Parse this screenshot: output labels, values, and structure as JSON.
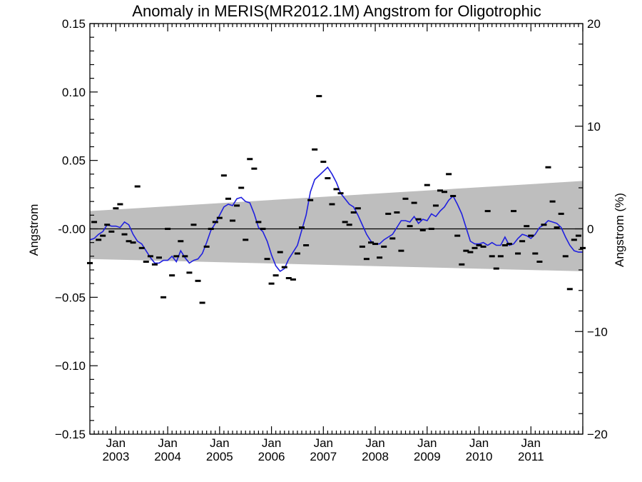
{
  "chart_data": {
    "type": "scatter",
    "title": "Anomaly in MERIS(MR2012.1M) Angstrom for Oligotrophic",
    "ylabel": "Angstrom",
    "ylabel_right": "Angstrom (%)",
    "xlim": [
      2002.5,
      2012.0
    ],
    "ylim": [
      -0.15,
      0.15
    ],
    "ylim_right": [
      -20,
      20
    ],
    "y_ticks": [
      {
        "value": 0.15,
        "label": "0.15"
      },
      {
        "value": 0.1,
        "label": "0.10"
      },
      {
        "value": 0.05,
        "label": "0.05"
      },
      {
        "value": 0.0,
        "label": "-0.00"
      },
      {
        "value": -0.05,
        "label": "−0.05"
      },
      {
        "value": -0.1,
        "label": "−0.10"
      },
      {
        "value": -0.15,
        "label": "−0.15"
      }
    ],
    "y_right_ticks": [
      {
        "value": 20,
        "label": "20"
      },
      {
        "value": 10,
        "label": "10"
      },
      {
        "value": 0,
        "label": "0"
      },
      {
        "value": -10,
        "label": "−10"
      },
      {
        "value": -20,
        "label": "−20"
      }
    ],
    "x_ticks": [
      {
        "value": 2003.0,
        "month": "Jan",
        "year": "2003"
      },
      {
        "value": 2004.0,
        "month": "Jan",
        "year": "2004"
      },
      {
        "value": 2005.0,
        "month": "Jan",
        "year": "2005"
      },
      {
        "value": 2006.0,
        "month": "Jan",
        "year": "2006"
      },
      {
        "value": 2007.0,
        "month": "Jan",
        "year": "2007"
      },
      {
        "value": 2008.0,
        "month": "Jan",
        "year": "2008"
      },
      {
        "value": 2009.0,
        "month": "Jan",
        "year": "2009"
      },
      {
        "value": 2010.0,
        "month": "Jan",
        "year": "2010"
      },
      {
        "value": 2011.0,
        "month": "Jan",
        "year": "2011"
      }
    ],
    "band": {
      "x": [
        2002.5,
        2012.0
      ],
      "upper": [
        0.013,
        0.035
      ],
      "lower": [
        -0.022,
        -0.031
      ],
      "color": "#bebebe"
    },
    "monthly_anomaly": {
      "x": [
        2002.5,
        2002.583,
        2002.667,
        2002.75,
        2002.833,
        2002.917,
        2003.0,
        2003.083,
        2003.167,
        2003.25,
        2003.333,
        2003.417,
        2003.5,
        2003.583,
        2003.667,
        2003.75,
        2003.833,
        2003.917,
        2004.0,
        2004.083,
        2004.167,
        2004.25,
        2004.333,
        2004.417,
        2004.5,
        2004.583,
        2004.667,
        2004.75,
        2004.833,
        2004.917,
        2005.0,
        2005.083,
        2005.167,
        2005.25,
        2005.333,
        2005.417,
        2005.5,
        2005.583,
        2005.667,
        2005.75,
        2005.833,
        2005.917,
        2006.0,
        2006.083,
        2006.167,
        2006.25,
        2006.333,
        2006.417,
        2006.5,
        2006.583,
        2006.667,
        2006.75,
        2006.833,
        2006.917,
        2007.0,
        2007.083,
        2007.167,
        2007.25,
        2007.333,
        2007.417,
        2007.5,
        2007.583,
        2007.667,
        2007.75,
        2007.833,
        2007.917,
        2008.0,
        2008.083,
        2008.167,
        2008.25,
        2008.333,
        2008.417,
        2008.5,
        2008.583,
        2008.667,
        2008.75,
        2008.833,
        2008.917,
        2009.0,
        2009.083,
        2009.167,
        2009.25,
        2009.333,
        2009.417,
        2009.5,
        2009.583,
        2009.667,
        2009.75,
        2009.833,
        2009.917,
        2010.0,
        2010.083,
        2010.167,
        2010.25,
        2010.333,
        2010.417,
        2010.5,
        2010.583,
        2010.667,
        2010.75,
        2010.833,
        2010.917,
        2011.0,
        2011.083,
        2011.167,
        2011.25,
        2011.333,
        2011.417,
        2011.5,
        2011.583,
        2011.667,
        2011.75,
        2011.833,
        2011.917,
        2012.0
      ],
      "y": [
        -0.025,
        0.005,
        -0.008,
        -0.005,
        0.003,
        -0.002,
        0.015,
        0.018,
        -0.004,
        -0.009,
        -0.01,
        0.031,
        -0.014,
        -0.024,
        -0.02,
        -0.026,
        -0.021,
        -0.05,
        0.0,
        -0.034,
        -0.02,
        -0.009,
        -0.02,
        -0.032,
        0.003,
        -0.038,
        -0.054,
        -0.013,
        0.0,
        0.005,
        0.008,
        0.039,
        0.022,
        0.006,
        0.017,
        0.03,
        -0.008,
        0.051,
        0.044,
        0.005,
        0.0,
        -0.022,
        -0.04,
        -0.034,
        -0.017,
        -0.028,
        -0.036,
        -0.037,
        -0.018,
        0.001,
        -0.012,
        0.021,
        0.058,
        0.097,
        0.049,
        0.037,
        0.018,
        0.029,
        0.026,
        0.005,
        0.003,
        0.012,
        0.015,
        -0.013,
        -0.022,
        -0.01,
        -0.011,
        -0.021,
        -0.013,
        0.011,
        -0.007,
        0.012,
        -0.016,
        0.022,
        0.002,
        0.019,
        0.007,
        -0.001,
        0.032,
        0.0,
        0.017,
        0.028,
        0.027,
        0.04,
        0.024,
        -0.005,
        -0.026,
        -0.016,
        -0.017,
        -0.014,
        -0.012,
        -0.013,
        0.013,
        -0.02,
        -0.029,
        -0.02,
        -0.012,
        -0.011,
        0.013,
        -0.018,
        -0.009,
        0.002,
        -0.005,
        -0.018,
        -0.024,
        0.003,
        0.045,
        0.02,
        0.001,
        0.011,
        -0.02,
        -0.044,
        -0.008,
        -0.005,
        -0.014
      ],
      "color": "#000000"
    },
    "smoothed": {
      "x": [
        2002.5,
        2002.583,
        2002.667,
        2002.75,
        2002.833,
        2002.917,
        2003.0,
        2003.083,
        2003.167,
        2003.25,
        2003.333,
        2003.417,
        2003.5,
        2003.583,
        2003.667,
        2003.75,
        2003.833,
        2003.917,
        2004.0,
        2004.083,
        2004.167,
        2004.25,
        2004.333,
        2004.417,
        2004.5,
        2004.583,
        2004.667,
        2004.75,
        2004.833,
        2004.917,
        2005.0,
        2005.083,
        2005.167,
        2005.25,
        2005.333,
        2005.417,
        2005.5,
        2005.583,
        2005.667,
        2005.75,
        2005.833,
        2005.917,
        2006.0,
        2006.083,
        2006.167,
        2006.25,
        2006.333,
        2006.417,
        2006.5,
        2006.583,
        2006.667,
        2006.75,
        2006.833,
        2006.917,
        2007.0,
        2007.083,
        2007.167,
        2007.25,
        2007.333,
        2007.417,
        2007.5,
        2007.583,
        2007.667,
        2007.75,
        2007.833,
        2007.917,
        2008.0,
        2008.083,
        2008.167,
        2008.25,
        2008.333,
        2008.417,
        2008.5,
        2008.583,
        2008.667,
        2008.75,
        2008.833,
        2008.917,
        2009.0,
        2009.083,
        2009.167,
        2009.25,
        2009.333,
        2009.417,
        2009.5,
        2009.583,
        2009.667,
        2009.75,
        2009.833,
        2009.917,
        2010.0,
        2010.083,
        2010.167,
        2010.25,
        2010.333,
        2010.417,
        2010.5,
        2010.583,
        2010.667,
        2010.75,
        2010.833,
        2010.917,
        2011.0,
        2011.083,
        2011.167,
        2011.25,
        2011.333,
        2011.417,
        2011.5,
        2011.583,
        2011.667,
        2011.75,
        2011.833,
        2011.917,
        2012.0
      ],
      "y": [
        -0.008,
        -0.007,
        -0.004,
        -0.002,
        0.003,
        0.002,
        0.002,
        0.001,
        0.005,
        0.003,
        -0.004,
        -0.009,
        -0.011,
        -0.016,
        -0.021,
        -0.025,
        -0.025,
        -0.023,
        -0.023,
        -0.02,
        -0.024,
        -0.016,
        -0.021,
        -0.025,
        -0.023,
        -0.022,
        -0.018,
        -0.01,
        -0.001,
        0.004,
        0.01,
        0.016,
        0.018,
        0.017,
        0.022,
        0.023,
        0.02,
        0.019,
        0.011,
        0.001,
        -0.002,
        -0.009,
        -0.019,
        -0.027,
        -0.031,
        -0.029,
        -0.022,
        -0.017,
        -0.012,
        -0.001,
        0.01,
        0.027,
        0.036,
        0.039,
        0.042,
        0.045,
        0.04,
        0.034,
        0.026,
        0.022,
        0.018,
        0.016,
        0.01,
        0.003,
        -0.004,
        -0.009,
        -0.011,
        -0.011,
        -0.008,
        -0.006,
        -0.004,
        0.001,
        0.006,
        0.006,
        0.005,
        0.009,
        0.004,
        0.007,
        0.006,
        0.011,
        0.009,
        0.013,
        0.016,
        0.021,
        0.024,
        0.018,
        0.011,
        0.001,
        -0.009,
        -0.011,
        -0.011,
        -0.01,
        -0.012,
        -0.01,
        -0.012,
        -0.012,
        -0.006,
        -0.012,
        -0.011,
        -0.007,
        -0.004,
        -0.005,
        -0.007,
        -0.004,
        0.001,
        0.003,
        0.006,
        0.005,
        0.004,
        0.001,
        -0.006,
        -0.012,
        -0.016,
        -0.017,
        -0.017
      ],
      "color": "#1f1fdf"
    }
  }
}
